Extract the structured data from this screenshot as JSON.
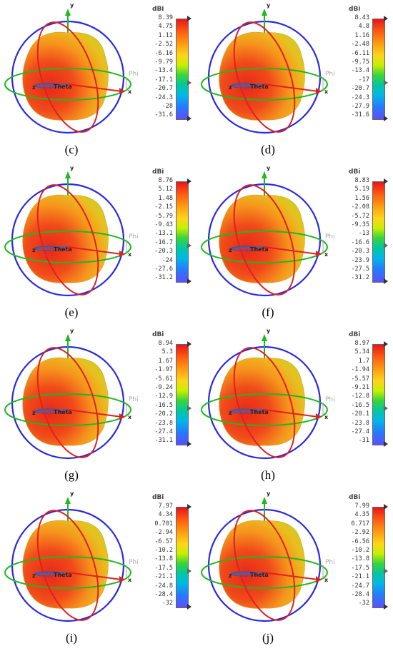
{
  "scale_unit": "dBi",
  "axis_labels": {
    "x": "x",
    "y": "y",
    "z": "z",
    "theta": "Theta",
    "phi": "Phi"
  },
  "panels": [
    {
      "caption": "(c)",
      "ticks": [
        "8.39",
        "4.75",
        "1.12",
        "-2.52",
        "-6.16",
        "-9.79",
        "-13.4",
        "-17.1",
        "-20.7",
        "-24.3",
        "-28",
        "-31.6"
      ]
    },
    {
      "caption": "(d)",
      "ticks": [
        "8.43",
        "4.8",
        "1.16",
        "-2.48",
        "-6.11",
        "-9.75",
        "-13.4",
        "-17",
        "-20.7",
        "-24.3",
        "-27.9",
        "-31.6"
      ]
    },
    {
      "caption": "(e)",
      "ticks": [
        "8.76",
        "5.12",
        "1.48",
        "-2.15",
        "-5.79",
        "-9.43",
        "-13.1",
        "-16.7",
        "-20.3",
        "-24",
        "-27.6",
        "-31.2"
      ]
    },
    {
      "caption": "(f)",
      "ticks": [
        "8.83",
        "5.19",
        "1.56",
        "-2.08",
        "-5.72",
        "-9.35",
        "-13",
        "-16.6",
        "-20.3",
        "-23.9",
        "-27.5",
        "-31.2"
      ]
    },
    {
      "caption": "(g)",
      "ticks": [
        "8.94",
        "5.3",
        "1.67",
        "-1.97",
        "-5.61",
        "-9.24",
        "-12.9",
        "-16.5",
        "-20.2",
        "-23.8",
        "-27.4",
        "-31.1"
      ]
    },
    {
      "caption": "(h)",
      "ticks": [
        "8.97",
        "5.34",
        "1.7",
        "-1.94",
        "-5.57",
        "-9.21",
        "-12.8",
        "-16.5",
        "-20.1",
        "-23.8",
        "-27.4",
        "-31"
      ]
    },
    {
      "caption": "(i)",
      "ticks": [
        "7.97",
        "4.34",
        "0.701",
        "-2.94",
        "-6.57",
        "-10.2",
        "-13.8",
        "-17.5",
        "-21.1",
        "-24.8",
        "-28.4",
        "-32"
      ]
    },
    {
      "caption": "(j)",
      "ticks": [
        "7.99",
        "4.35",
        "0.717",
        "-2.92",
        "-6.56",
        "-10.2",
        "-13.8",
        "-17.5",
        "-21.1",
        "-24.7",
        "-28.4",
        "-32"
      ]
    }
  ]
}
